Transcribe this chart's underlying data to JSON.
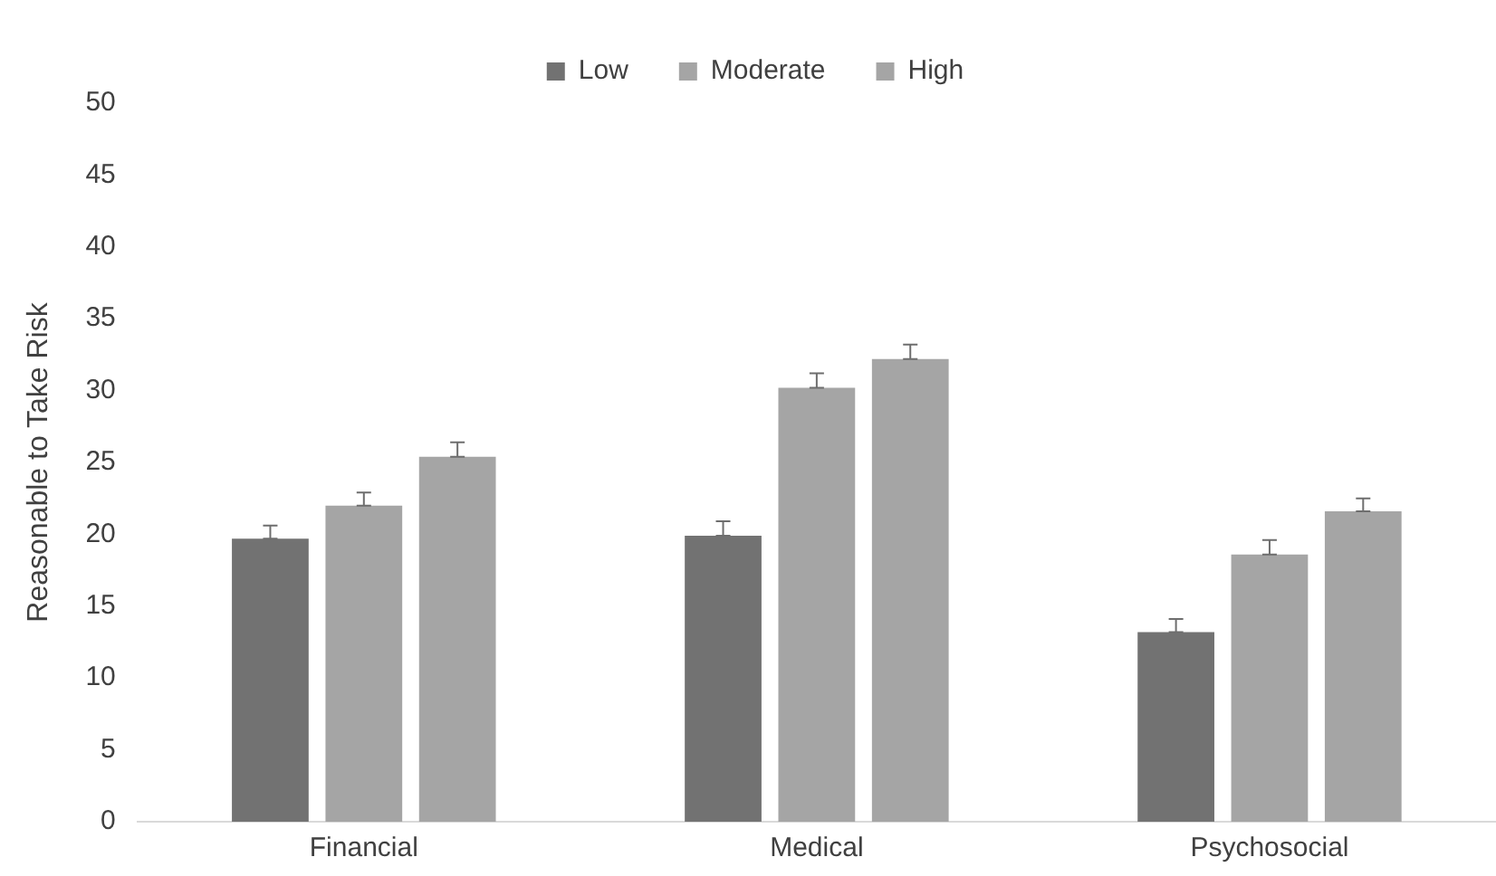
{
  "chart_data": {
    "type": "bar",
    "ylabel": "Reasonable to Take Risk",
    "categories": [
      "Financial",
      "Medical",
      "Psychosocial"
    ],
    "series": [
      {
        "name": "Low",
        "color": "#727272",
        "values": [
          19.7,
          19.9,
          13.2
        ],
        "errors": [
          [
            19.7,
            20.6
          ],
          [
            19.9,
            20.9
          ],
          [
            13.2,
            14.1
          ]
        ]
      },
      {
        "name": "Moderate",
        "color": "#a5a5a5",
        "values": [
          22.0,
          30.2,
          18.6
        ],
        "errors": [
          [
            22.0,
            22.9
          ],
          [
            30.2,
            31.2
          ],
          [
            18.6,
            19.6
          ]
        ]
      },
      {
        "name": "High",
        "color": "#a5a5a5",
        "values": [
          25.4,
          32.2,
          21.6
        ],
        "errors": [
          [
            25.4,
            26.4
          ],
          [
            32.2,
            33.2
          ],
          [
            21.6,
            22.5
          ]
        ]
      }
    ],
    "ylim": [
      0,
      50
    ],
    "yticks": [
      0,
      5,
      10,
      15,
      20,
      25,
      30,
      35,
      40,
      45,
      50
    ],
    "grid": false,
    "legend": "top"
  }
}
